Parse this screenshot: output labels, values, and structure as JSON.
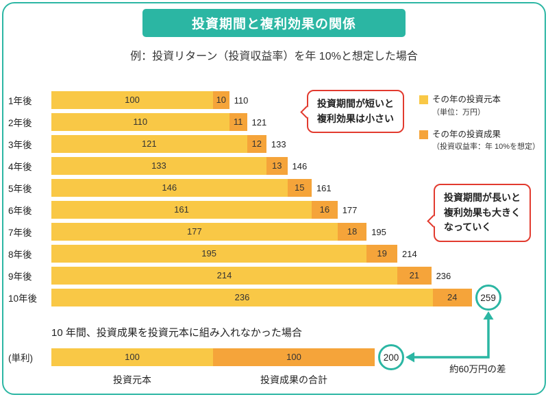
{
  "title": "投資期間と複利効果の関係",
  "subtitle": "例：投資リターン（投資収益率）を年 10%と想定した場合",
  "legend": {
    "principal_label": "その年の投資元本",
    "principal_sub": "（単位：万円）",
    "gain_label": "その年の投資成果",
    "gain_sub": "（投資収益率：年 10%を想定）"
  },
  "callouts": {
    "short_lines": [
      "投資期間が短いと",
      "複利効果は小さい"
    ],
    "long_lines": [
      "投資期間が長いと",
      "複利効果も大きく",
      "なっていく"
    ]
  },
  "chart_data": {
    "type": "bar",
    "orientation": "horizontal",
    "unit": "万円",
    "categories": [
      "1年後",
      "2年後",
      "3年後",
      "4年後",
      "5年後",
      "6年後",
      "7年後",
      "8年後",
      "9年後",
      "10年後"
    ],
    "series": [
      {
        "name": "その年の投資元本",
        "color": "#F9C846",
        "values": [
          100,
          110,
          121,
          133,
          146,
          161,
          177,
          195,
          214,
          236
        ]
      },
      {
        "name": "その年の投資成果",
        "color": "#F5A43A",
        "values": [
          10,
          11,
          12,
          13,
          15,
          16,
          18,
          19,
          21,
          24
        ]
      }
    ],
    "totals": [
      110,
      121,
      133,
      146,
      161,
      177,
      195,
      214,
      236,
      259
    ],
    "xlim": [
      0,
      260
    ],
    "highlight_total": 259,
    "grid": false,
    "legend_position": "top-right"
  },
  "simple_section": {
    "heading": "10 年間、投資成果を投資元本に組み入れなかった場合",
    "row_label": "(単利)",
    "principal_value": 100,
    "gain_value": 100,
    "total": 200,
    "principal_caption": "投資元本",
    "gain_caption": "投資成果の合計",
    "difference_note": "約60万円の差"
  },
  "colors": {
    "teal": "#2BB6A3",
    "yellow": "#F9C846",
    "orange": "#F5A43A",
    "red": "#E23A2E"
  }
}
